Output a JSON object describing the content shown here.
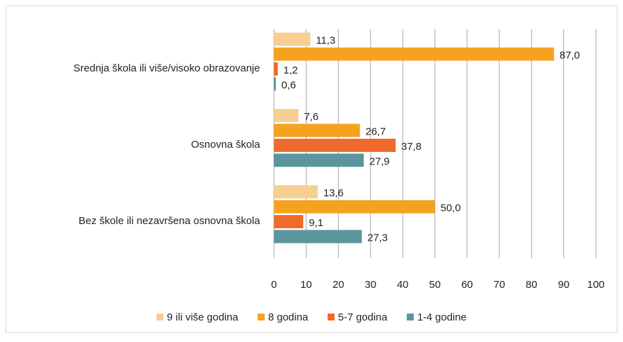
{
  "chart_data": {
    "type": "hbar",
    "categories": [
      "Srednja škola ili više/visoko obrazovanje",
      "Osnovna škola",
      "Bez škole ili nezavršena osnovna škola"
    ],
    "series": [
      {
        "name": "9 ili više godina",
        "color": "#f8cf92",
        "values": [
          11.3,
          7.6,
          13.6
        ],
        "value_labels": [
          "11,3",
          "7,6",
          "13,6"
        ]
      },
      {
        "name": "8 godina",
        "color": "#f5a21f",
        "values": [
          87.0,
          26.7,
          50.0
        ],
        "value_labels": [
          "87,0",
          "26,7",
          "50,0"
        ]
      },
      {
        "name": "5-7 godina",
        "color": "#ef6a2b",
        "values": [
          1.2,
          37.8,
          9.1
        ],
        "value_labels": [
          "1,2",
          "37,8",
          "9,1"
        ]
      },
      {
        "name": "1-4 godine",
        "color": "#5b969d",
        "values": [
          0.6,
          27.9,
          27.3
        ],
        "value_labels": [
          "0,6",
          "27,9",
          "27,3"
        ]
      }
    ],
    "xlim": [
      0,
      100
    ],
    "xticks": [
      0,
      10,
      20,
      30,
      40,
      50,
      60,
      70,
      80,
      90,
      100
    ],
    "grid": true,
    "legend": "bottom"
  }
}
